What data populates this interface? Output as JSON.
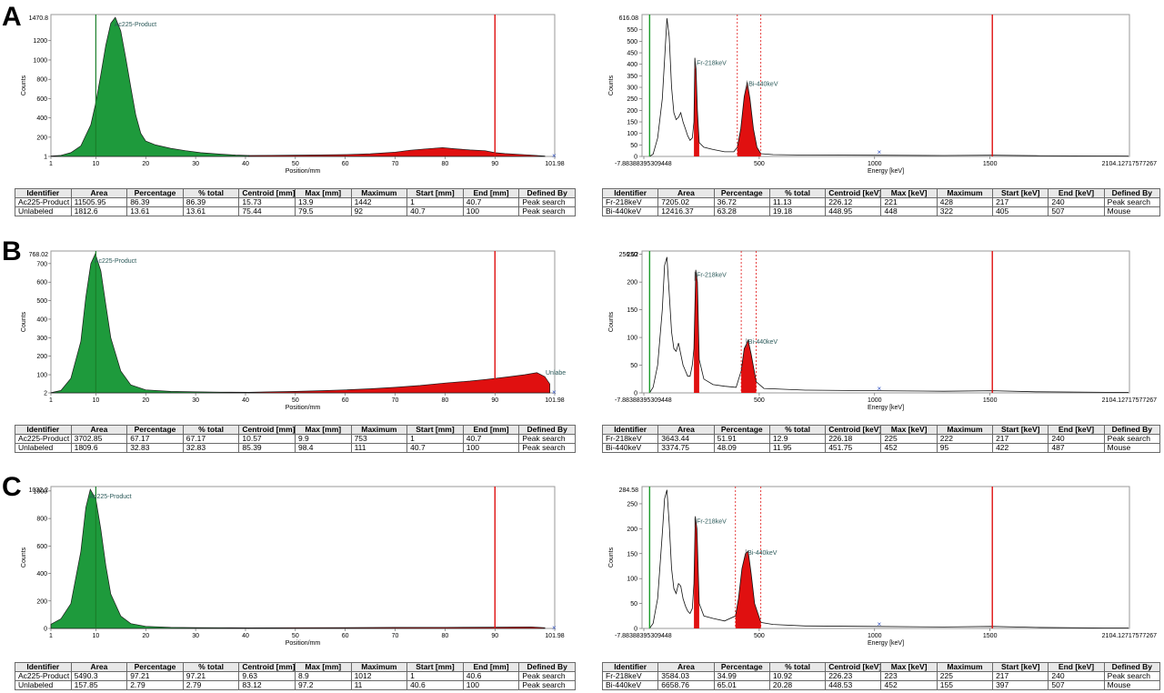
{
  "panels": [
    {
      "letter": "A",
      "left_chart": {
        "type": "area",
        "ymax_label": "1470.8",
        "yticks": [
          "1",
          "200",
          "400",
          "600",
          "800",
          "1000",
          "1200"
        ],
        "xticks": [
          "1",
          "10",
          "20",
          "30",
          "40",
          "50",
          "60",
          "70",
          "80",
          "90",
          "101.98"
        ],
        "xlabel": "Position/mm",
        "ylabel": "Counts",
        "peak_label": "Ac225-Product"
      },
      "right_chart": {
        "type": "line",
        "ymax_label": "616.08",
        "yticks": [
          "0",
          "50",
          "100",
          "150",
          "200",
          "250",
          "300",
          "350",
          "400",
          "450",
          "500",
          "550"
        ],
        "xticks": [
          "500",
          "1000",
          "1500"
        ],
        "xmin_label": "-7.88388395309448",
        "xmax_label": "2104.12717577267",
        "xlabel": "Energy [keV]",
        "ylabel": "Counts",
        "peak_labels": [
          "Fr-218keV",
          "Bi-440keV"
        ]
      },
      "left_table": {
        "headers": [
          "Identifier",
          "Area",
          "Percentage",
          "% total",
          "Centroid [mm]",
          "Max [mm]",
          "Maximum",
          "Start [mm]",
          "End [mm]",
          "Defined By"
        ],
        "rows": [
          [
            "Ac225-Product",
            "11505.95",
            "86.39",
            "86.39",
            "15.73",
            "13.9",
            "1442",
            "1",
            "40.7",
            "Peak search"
          ],
          [
            "Unlabeled",
            "1812.6",
            "13.61",
            "13.61",
            "75.44",
            "79.5",
            "92",
            "40.7",
            "100",
            "Peak search"
          ]
        ]
      },
      "right_table": {
        "headers": [
          "Identifier",
          "Area",
          "Percentage",
          "% total",
          "Centroid [keV]",
          "Max [keV]",
          "Maximum",
          "Start [keV]",
          "End [keV]",
          "Defined By"
        ],
        "rows": [
          [
            "Fr-218keV",
            "7205.02",
            "36.72",
            "11.13",
            "226.12",
            "221",
            "428",
            "217",
            "240",
            "Peak search"
          ],
          [
            "Bi-440keV",
            "12416.37",
            "63.28",
            "19.18",
            "448.95",
            "448",
            "322",
            "405",
            "507",
            "Mouse"
          ]
        ]
      }
    },
    {
      "letter": "B",
      "left_chart": {
        "type": "area",
        "ymax_label": "768.02",
        "yticks": [
          "2",
          "100",
          "200",
          "300",
          "400",
          "500",
          "600",
          "700"
        ],
        "xticks": [
          "1",
          "10",
          "20",
          "30",
          "40",
          "50",
          "60",
          "70",
          "80",
          "90",
          "101.98"
        ],
        "xlabel": "Position/mm",
        "ylabel": "Counts",
        "peak_label": "Ac225-Product",
        "extra_label": "Unlabe"
      },
      "right_chart": {
        "type": "line",
        "ymax_label": "256.02",
        "yticks": [
          "0",
          "50",
          "100",
          "150",
          "200",
          "250"
        ],
        "xticks": [
          "500",
          "1000",
          "1500"
        ],
        "xmin_label": "-7.88388395309448",
        "xmax_label": "2104.12717577267",
        "xlabel": "Energy [keV]",
        "ylabel": "Counts",
        "peak_labels": [
          "Fr-218keV",
          "Bi-440keV"
        ]
      },
      "left_table": {
        "headers": [
          "Identifier",
          "Area",
          "Percentage",
          "% total",
          "Centroid [mm]",
          "Max [mm]",
          "Maximum",
          "Start [mm]",
          "End [mm]",
          "Defined By"
        ],
        "rows": [
          [
            "Ac225-Product",
            "3702.85",
            "67.17",
            "67.17",
            "10.57",
            "9.9",
            "753",
            "1",
            "40.7",
            "Peak search"
          ],
          [
            "Unlabeled",
            "1809.6",
            "32.83",
            "32.83",
            "85.39",
            "98.4",
            "111",
            "40.7",
            "100",
            "Peak search"
          ]
        ]
      },
      "right_table": {
        "headers": [
          "Identifier",
          "Area",
          "Percentage",
          "% total",
          "Centroid [keV]",
          "Max [keV]",
          "Maximum",
          "Start [keV]",
          "End [keV]",
          "Defined By"
        ],
        "rows": [
          [
            "Fr-218keV",
            "3643.44",
            "51.91",
            "12.9",
            "226.18",
            "225",
            "222",
            "217",
            "240",
            "Peak search"
          ],
          [
            "Bi-440keV",
            "3374.75",
            "48.09",
            "11.95",
            "451.75",
            "452",
            "95",
            "422",
            "487",
            "Mouse"
          ]
        ]
      }
    },
    {
      "letter": "C",
      "left_chart": {
        "type": "area",
        "ymax_label": "1032.2",
        "yticks": [
          "0",
          "200",
          "400",
          "600",
          "800",
          "1000"
        ],
        "xticks": [
          "1",
          "10",
          "20",
          "30",
          "40",
          "50",
          "60",
          "70",
          "80",
          "90",
          "101.98"
        ],
        "xlabel": "Position/mm",
        "ylabel": "Counts",
        "peak_label": "Ac225-Product"
      },
      "right_chart": {
        "type": "line",
        "ymax_label": "284.58",
        "yticks": [
          "0",
          "50",
          "100",
          "150",
          "200",
          "250"
        ],
        "xticks": [
          "500",
          "1000",
          "1500"
        ],
        "xmin_label": "-7.88388395309448",
        "xmax_label": "2104.12717577267",
        "xlabel": "Energy [keV]",
        "ylabel": "Counts",
        "peak_labels": [
          "Fr-218keV",
          "Bi-440keV"
        ]
      },
      "left_table": {
        "headers": [
          "Identifier",
          "Area",
          "Percentage",
          "% total",
          "Centroid [mm]",
          "Max [mm]",
          "Maximum",
          "Start [mm]",
          "End [mm]",
          "Defined By"
        ],
        "rows": [
          [
            "Ac225-Product",
            "5490.3",
            "97.21",
            "97.21",
            "9.63",
            "8.9",
            "1012",
            "1",
            "40.6",
            "Peak search"
          ],
          [
            "Unlabeled",
            "157.85",
            "2.79",
            "2.79",
            "83.12",
            "97.2",
            "11",
            "40.6",
            "100",
            "Peak search"
          ]
        ]
      },
      "right_table": {
        "headers": [
          "Identifier",
          "Area",
          "Percentage",
          "% total",
          "Centroid [keV]",
          "Max [keV]",
          "Maximum",
          "Start [keV]",
          "End [keV]",
          "Defined By"
        ],
        "rows": [
          [
            "Fr-218keV",
            "3584.03",
            "34.99",
            "10.92",
            "226.23",
            "223",
            "225",
            "217",
            "240",
            "Peak search"
          ],
          [
            "Bi-440keV",
            "6658.76",
            "65.01",
            "20.28",
            "448.53",
            "452",
            "155",
            "397",
            "507",
            "Mouse"
          ]
        ]
      }
    }
  ],
  "chart_data": [
    {
      "type": "area",
      "panel": "A",
      "xlabel": "Position/mm",
      "ylabel": "Counts",
      "xlim": [
        1,
        101.98
      ],
      "ylim": [
        1,
        1470.8
      ],
      "series": [
        {
          "name": "Ac225-Product",
          "color": "#1e9a3c",
          "x": [
            1,
            3,
            5,
            7,
            9,
            10,
            11,
            12,
            13,
            13.9,
            15,
            16,
            17,
            18,
            19,
            20,
            22,
            25,
            28,
            31,
            35,
            38,
            40.7
          ],
          "y": [
            5,
            12,
            40,
            110,
            330,
            560,
            850,
            1150,
            1380,
            1442,
            1300,
            1020,
            720,
            430,
            240,
            160,
            120,
            85,
            60,
            40,
            25,
            15,
            10
          ]
        },
        {
          "name": "Unlabeled",
          "color": "#e01010",
          "x": [
            40.7,
            45,
            50,
            55,
            60,
            65,
            70,
            73,
            76,
            79.5,
            82,
            85,
            88,
            90,
            92,
            95,
            98,
            100
          ],
          "y": [
            10,
            12,
            14,
            16,
            20,
            28,
            45,
            65,
            78,
            92,
            80,
            68,
            60,
            40,
            30,
            22,
            12,
            5
          ]
        }
      ],
      "markers": {
        "green_line_x": 10,
        "red_line_x": 90
      }
    },
    {
      "type": "line",
      "panel": "A",
      "xlabel": "Energy [keV]",
      "ylabel": "Counts",
      "xlim": [
        -7.88388395309448,
        2104.12717577267
      ],
      "ylim": [
        0,
        616.08
      ],
      "series": [
        {
          "name": "Spectrum",
          "color": "#000000",
          "x": [
            25,
            40,
            60,
            80,
            90,
            100,
            110,
            120,
            130,
            140,
            150,
            160,
            170,
            180,
            190,
            200,
            210,
            217,
            221,
            226,
            232,
            240,
            260,
            300,
            350,
            390,
            405,
            420,
            435,
            448,
            460,
            475,
            490,
            507,
            560,
            700,
            1000,
            1300,
            1510,
            1700,
            2000,
            2100
          ],
          "y": [
            0,
            10,
            80,
            250,
            420,
            600,
            520,
            300,
            190,
            160,
            170,
            190,
            150,
            120,
            90,
            70,
            80,
            150,
            428,
            380,
            200,
            60,
            40,
            30,
            20,
            20,
            40,
            120,
            260,
            322,
            250,
            120,
            40,
            12,
            8,
            6,
            5,
            4,
            5,
            3,
            2,
            1
          ]
        }
      ],
      "peaks": [
        {
          "label": "Fr-218keV",
          "start": 217,
          "end": 240,
          "max": 428
        },
        {
          "label": "Bi-440keV",
          "start": 405,
          "end": 507,
          "max": 322
        }
      ],
      "markers": {
        "dashed_x": [
          405,
          507
        ],
        "red_line_x": 1510,
        "green_line_x": 25
      }
    },
    {
      "type": "area",
      "panel": "B",
      "xlabel": "Position/mm",
      "ylabel": "Counts",
      "xlim": [
        1,
        101.98
      ],
      "ylim": [
        2,
        768.02
      ],
      "series": [
        {
          "name": "Ac225-Product",
          "color": "#1e9a3c",
          "x": [
            1,
            3,
            5,
            7,
            8,
            9,
            9.9,
            11,
            12,
            13,
            15,
            17,
            20,
            25,
            30,
            35,
            40.7
          ],
          "y": [
            3,
            15,
            80,
            280,
            520,
            700,
            753,
            660,
            480,
            300,
            120,
            45,
            18,
            10,
            8,
            6,
            5
          ]
        },
        {
          "name": "Unlabeled",
          "color": "#e01010",
          "x": [
            40.7,
            45,
            50,
            55,
            60,
            65,
            70,
            75,
            80,
            85,
            88,
            90,
            93,
            96,
            98.4,
            100,
            101
          ],
          "y": [
            5,
            8,
            10,
            14,
            18,
            24,
            32,
            42,
            55,
            66,
            74,
            80,
            90,
            100,
            111,
            90,
            50
          ]
        }
      ],
      "markers": {
        "green_line_x": 10,
        "red_line_x": 90
      }
    },
    {
      "type": "line",
      "panel": "B",
      "xlabel": "Energy [keV]",
      "ylabel": "Counts",
      "xlim": [
        -7.88388395309448,
        2104.12717577267
      ],
      "ylim": [
        0,
        256.02
      ],
      "series": [
        {
          "name": "Spectrum",
          "color": "#000000",
          "x": [
            25,
            40,
            60,
            80,
            90,
            100,
            110,
            120,
            130,
            140,
            150,
            160,
            170,
            180,
            190,
            200,
            210,
            217,
            225,
            232,
            240,
            260,
            300,
            350,
            400,
            422,
            435,
            452,
            465,
            487,
            520,
            700,
            1000,
            1300,
            1510,
            1700,
            2000,
            2100
          ],
          "y": [
            0,
            10,
            50,
            150,
            230,
            245,
            180,
            110,
            80,
            75,
            90,
            70,
            50,
            40,
            30,
            30,
            50,
            80,
            222,
            200,
            60,
            25,
            15,
            12,
            10,
            40,
            80,
            95,
            70,
            20,
            8,
            5,
            4,
            3,
            4,
            2,
            1,
            1
          ]
        }
      ],
      "peaks": [
        {
          "label": "Fr-218keV",
          "start": 217,
          "end": 240,
          "max": 222
        },
        {
          "label": "Bi-440keV",
          "start": 422,
          "end": 487,
          "max": 95
        }
      ],
      "markers": {
        "dashed_x": [
          422,
          487
        ],
        "red_line_x": 1510,
        "green_line_x": 25
      }
    },
    {
      "type": "area",
      "panel": "C",
      "xlabel": "Position/mm",
      "ylabel": "Counts",
      "xlim": [
        1,
        101.98
      ],
      "ylim": [
        0,
        1032.2
      ],
      "series": [
        {
          "name": "Ac225-Product",
          "color": "#1e9a3c",
          "x": [
            1,
            3,
            5,
            7,
            8,
            8.9,
            10,
            11,
            12,
            13,
            15,
            17,
            20,
            25,
            30,
            35,
            40.6
          ],
          "y": [
            30,
            70,
            180,
            560,
            880,
            1012,
            940,
            720,
            460,
            250,
            90,
            35,
            15,
            8,
            6,
            5,
            4
          ]
        },
        {
          "name": "Unlabeled",
          "color": "#e01010",
          "x": [
            40.6,
            50,
            60,
            70,
            80,
            90,
            97.2,
            100
          ],
          "y": [
            4,
            5,
            6,
            7,
            8,
            9,
            11,
            5
          ]
        }
      ],
      "markers": {
        "green_line_x": 10,
        "red_line_x": 90
      }
    },
    {
      "type": "line",
      "panel": "C",
      "xlabel": "Energy [keV]",
      "ylabel": "Counts",
      "xlim": [
        -7.88388395309448,
        2104.12717577267
      ],
      "ylim": [
        0,
        284.58
      ],
      "series": [
        {
          "name": "Spectrum",
          "color": "#000000",
          "x": [
            25,
            40,
            60,
            80,
            90,
            100,
            110,
            120,
            130,
            140,
            150,
            160,
            170,
            180,
            190,
            200,
            210,
            217,
            223,
            230,
            240,
            260,
            300,
            350,
            397,
            410,
            425,
            440,
            452,
            465,
            480,
            507,
            560,
            700,
            1000,
            1300,
            1510,
            1700,
            2000,
            2100
          ],
          "y": [
            0,
            10,
            60,
            190,
            260,
            278,
            210,
            120,
            80,
            70,
            90,
            85,
            60,
            45,
            35,
            30,
            40,
            90,
            225,
            200,
            50,
            25,
            20,
            15,
            25,
            60,
            120,
            150,
            155,
            110,
            50,
            12,
            8,
            5,
            4,
            3,
            4,
            2,
            1,
            1
          ]
        }
      ],
      "peaks": [
        {
          "label": "Fr-218keV",
          "start": 217,
          "end": 240,
          "max": 225
        },
        {
          "label": "Bi-440keV",
          "start": 397,
          "end": 507,
          "max": 155
        }
      ],
      "markers": {
        "dashed_x": [
          397,
          507
        ],
        "red_line_x": 1510,
        "green_line_x": 25
      }
    }
  ]
}
